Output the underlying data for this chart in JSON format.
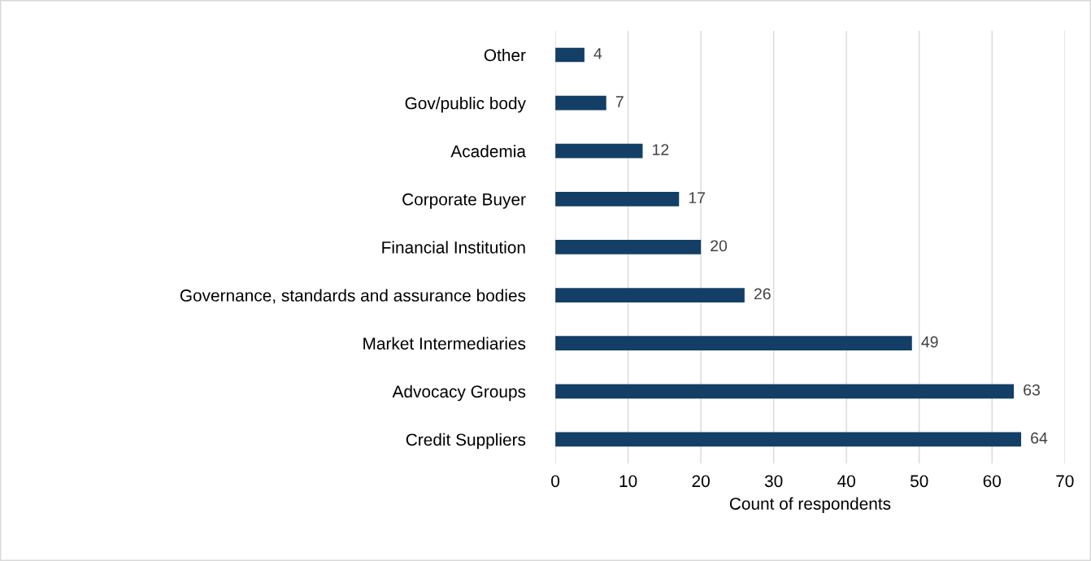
{
  "chart_data": {
    "type": "bar",
    "orientation": "horizontal",
    "xlabel": "Count of respondents",
    "categories": [
      "Other",
      "Gov/public body",
      "Academia",
      "Corporate Buyer",
      "Financial Institution",
      "Governance, standards and assurance bodies",
      "Market Intermediaries",
      "Advocacy Groups",
      "Credit Suppliers"
    ],
    "values": [
      4,
      7,
      12,
      17,
      20,
      26,
      49,
      63,
      64
    ],
    "color": "#133f66",
    "xlim": [
      0,
      70
    ],
    "xticks": [
      0,
      10,
      20,
      30,
      40,
      50,
      60,
      70
    ],
    "grid": "x",
    "data_labels": true,
    "legend": false
  }
}
